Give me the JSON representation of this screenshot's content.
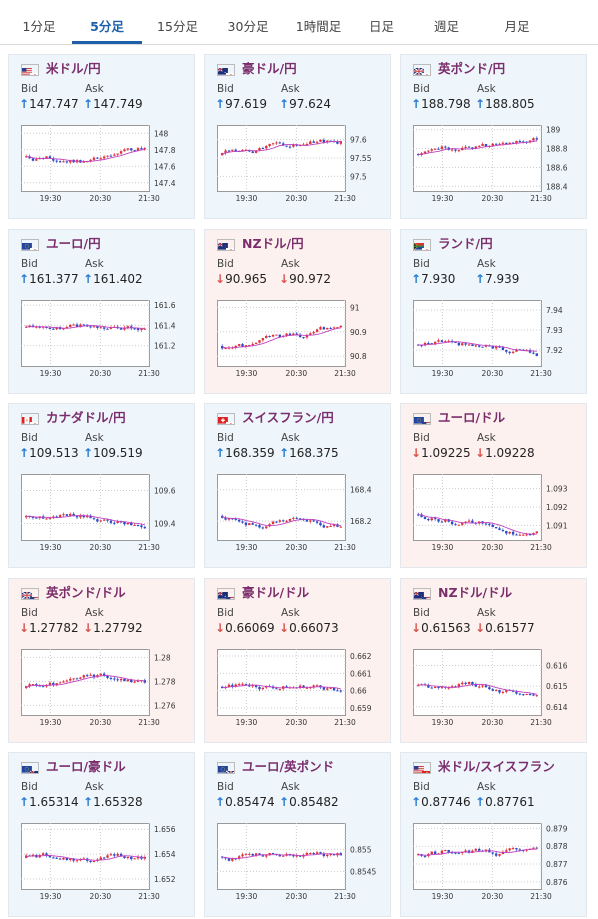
{
  "tabs": [
    {
      "label": "1分足",
      "active": false
    },
    {
      "label": "5分足",
      "active": true
    },
    {
      "label": "15分足",
      "active": false
    },
    {
      "label": "30分足",
      "active": false
    },
    {
      "label": "1時間足",
      "active": false
    },
    {
      "label": "日足",
      "active": false
    },
    {
      "label": "週足",
      "active": false
    },
    {
      "label": "月足",
      "active": false
    }
  ],
  "bid_label": "Bid",
  "ask_label": "Ask",
  "x_ticks": [
    "19:30",
    "20:30",
    "21:30"
  ],
  "colors": {
    "up_bg": "#eef6fc",
    "down_bg": "#fdf1ef",
    "pair_text": "#7b2e6b",
    "arrow_up": "#2a7bd0",
    "arrow_down": "#d9534f",
    "candle_up": "#e0303a",
    "candle_down": "#2a4bc8",
    "ma": "#c040c0"
  },
  "cards": [
    {
      "pair": "米ドル/円",
      "flag": "us-jp",
      "direction": "up",
      "bid": "147.747",
      "ask": "147.749",
      "y_ticks": [
        "148",
        "147.8",
        "147.6",
        "147.4"
      ],
      "y_range": [
        147.3,
        148.1
      ]
    },
    {
      "pair": "豪ドル/円",
      "flag": "au-jp",
      "direction": "up",
      "bid": "97.619",
      "ask": "97.624",
      "y_ticks": [
        "97.6",
        "97.55",
        "97.5"
      ],
      "y_range": [
        97.46,
        97.64
      ]
    },
    {
      "pair": "英ポンド/円",
      "flag": "gb-jp",
      "direction": "up",
      "bid": "188.798",
      "ask": "188.805",
      "y_ticks": [
        "189",
        "188.8",
        "188.6",
        "188.4"
      ],
      "y_range": [
        188.35,
        189.05
      ]
    },
    {
      "pair": "ユーロ/円",
      "flag": "eu-jp",
      "direction": "up",
      "bid": "161.377",
      "ask": "161.402",
      "y_ticks": [
        "161.6",
        "161.4",
        "161.2"
      ],
      "y_range": [
        161.0,
        161.65
      ]
    },
    {
      "pair": "NZドル/円",
      "flag": "nz-jp",
      "direction": "down",
      "bid": "90.965",
      "ask": "90.972",
      "y_ticks": [
        "91",
        "90.9",
        "90.8"
      ],
      "y_range": [
        90.76,
        91.03
      ]
    },
    {
      "pair": "ランド/円",
      "flag": "za-jp",
      "direction": "up",
      "bid": "7.930",
      "ask": "7.939",
      "y_ticks": [
        "7.94",
        "7.93",
        "7.92"
      ],
      "y_range": [
        7.912,
        7.945
      ]
    },
    {
      "pair": "カナダドル/円",
      "flag": "ca-jp",
      "direction": "up",
      "bid": "109.513",
      "ask": "109.519",
      "y_ticks": [
        "109.6",
        "109.4"
      ],
      "y_range": [
        109.3,
        109.7
      ]
    },
    {
      "pair": "スイスフラン/円",
      "flag": "ch-jp",
      "direction": "up",
      "bid": "168.359",
      "ask": "168.375",
      "y_ticks": [
        "168.4",
        "168.2"
      ],
      "y_range": [
        168.08,
        168.5
      ]
    },
    {
      "pair": "ユーロ/ドル",
      "flag": "eu-us",
      "direction": "down",
      "bid": "1.09225",
      "ask": "1.09228",
      "y_ticks": [
        "1.093",
        "1.092",
        "1.091"
      ],
      "y_range": [
        1.0902,
        1.0938
      ]
    },
    {
      "pair": "英ポンド/ドル",
      "flag": "gb-us",
      "direction": "down",
      "bid": "1.27782",
      "ask": "1.27792",
      "y_ticks": [
        "1.28",
        "1.278",
        "1.276"
      ],
      "y_range": [
        1.2752,
        1.2807
      ]
    },
    {
      "pair": "豪ドル/ドル",
      "flag": "au-us",
      "direction": "down",
      "bid": "0.66069",
      "ask": "0.66073",
      "y_ticks": [
        "0.662",
        "0.661",
        "0.66",
        "0.659"
      ],
      "y_range": [
        0.6586,
        0.6624
      ]
    },
    {
      "pair": "NZドル/ドル",
      "flag": "nz-us",
      "direction": "down",
      "bid": "0.61563",
      "ask": "0.61577",
      "y_ticks": [
        "0.616",
        "0.615",
        "0.614"
      ],
      "y_range": [
        0.6136,
        0.6168
      ]
    },
    {
      "pair": "ユーロ/豪ドル",
      "flag": "eu-au",
      "direction": "up",
      "bid": "1.65314",
      "ask": "1.65328",
      "y_ticks": [
        "1.656",
        "1.654",
        "1.652"
      ],
      "y_range": [
        1.6512,
        1.6565
      ]
    },
    {
      "pair": "ユーロ/英ポンド",
      "flag": "eu-gb",
      "direction": "up",
      "bid": "0.85474",
      "ask": "0.85482",
      "y_ticks": [
        "0.855",
        "0.8545"
      ],
      "y_range": [
        0.8541,
        0.8556
      ]
    },
    {
      "pair": "米ドル/スイスフラン",
      "flag": "us-ch",
      "direction": "up",
      "bid": "0.87746",
      "ask": "0.87761",
      "y_ticks": [
        "0.879",
        "0.878",
        "0.877",
        "0.876"
      ],
      "y_range": [
        0.8756,
        0.8793
      ]
    }
  ]
}
